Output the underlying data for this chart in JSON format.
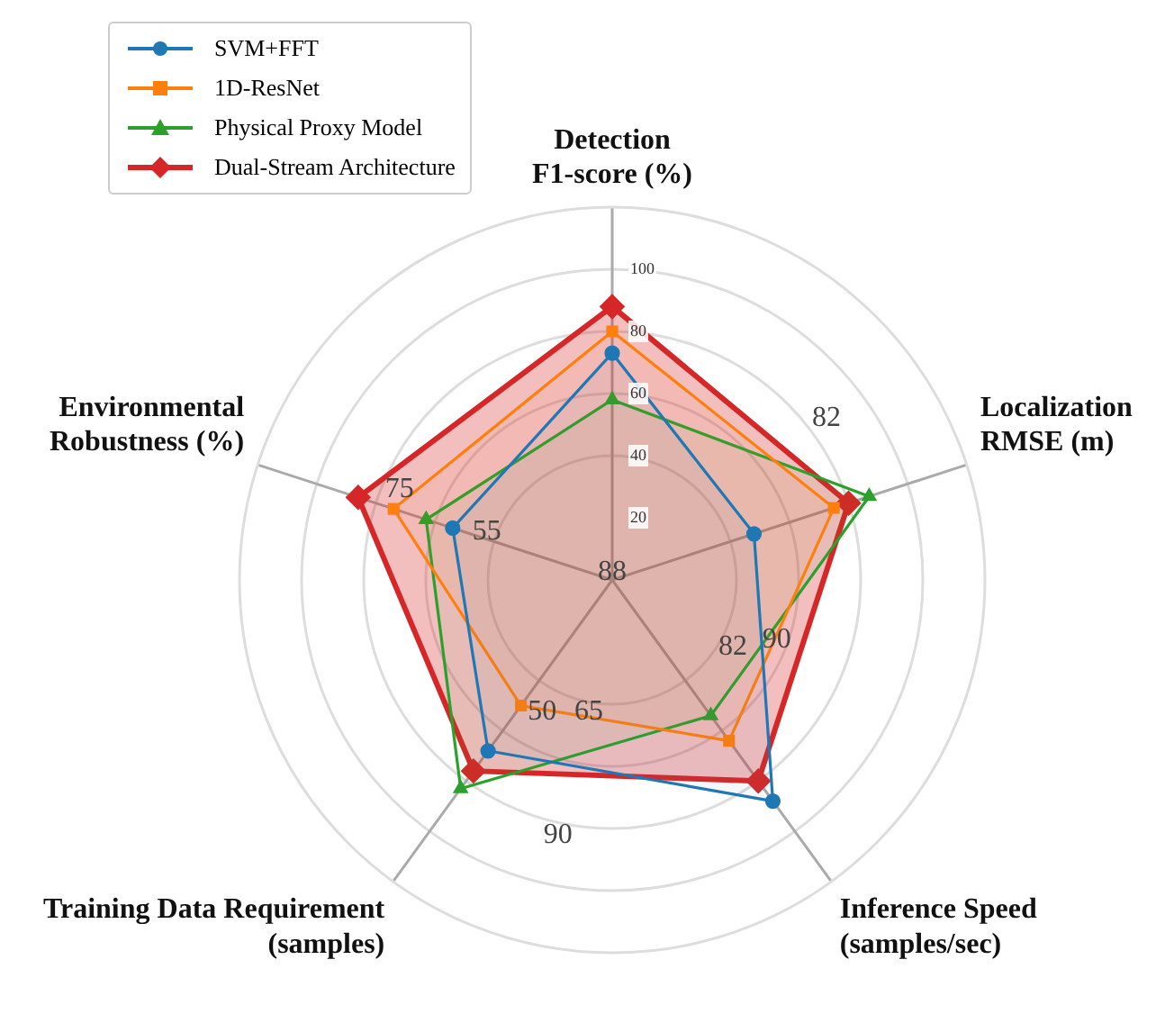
{
  "chart_data": {
    "type": "radar",
    "categories": [
      "Detection F1-score (%)",
      "Localization RMSE (m)",
      "Inference Speed (samples/sec)",
      "Training Data Requirement (samples)",
      "Environmental Robustness (%)"
    ],
    "series": [
      {
        "name": "SVM+FFT",
        "color": "#1f77b4",
        "marker": "circle",
        "values": [
          73,
          48,
          88,
          68,
          54
        ]
      },
      {
        "name": "1D-ResNet",
        "color": "#ff7f0e",
        "marker": "square",
        "values": [
          80,
          75,
          64,
          50,
          74
        ]
      },
      {
        "name": "Physical Proxy Model",
        "color": "#2ca02c",
        "marker": "triangle",
        "values": [
          58,
          87,
          54,
          83,
          63
        ]
      },
      {
        "name": "Dual-Stream Architecture",
        "color": "#d62728",
        "marker": "diamond",
        "values": [
          88,
          80,
          80,
          76,
          86
        ]
      }
    ],
    "ylim": [
      0,
      120
    ],
    "yticks": [
      20,
      40,
      60,
      80,
      100
    ],
    "grid": true,
    "legend": "top left",
    "annotations": [
      "82",
      "82",
      "90",
      "75",
      "55",
      "65",
      "50",
      "90",
      "88"
    ]
  }
}
